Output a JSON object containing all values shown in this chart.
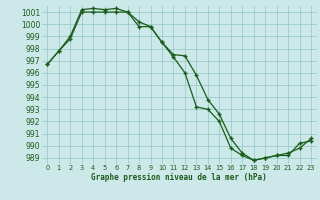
{
  "title": "Graphe pression niveau de la mer (hPa)",
  "bg_color": "#cce8e8",
  "grid_color": "#99cccc",
  "line_color": "#1a5c1a",
  "xlim": [
    -0.5,
    23.5
  ],
  "ylim": [
    988.5,
    1001.5
  ],
  "xticks": [
    0,
    1,
    2,
    3,
    4,
    5,
    6,
    7,
    8,
    9,
    10,
    11,
    12,
    13,
    14,
    15,
    16,
    17,
    18,
    19,
    20,
    21,
    22,
    23
  ],
  "yticks": [
    989,
    990,
    991,
    992,
    993,
    994,
    995,
    996,
    997,
    998,
    999,
    1000,
    1001
  ],
  "series1_x": [
    0,
    1,
    2,
    3,
    4,
    5,
    6,
    7,
    8,
    9,
    10,
    11,
    12,
    13,
    14,
    15,
    16,
    17,
    18,
    19,
    20,
    21,
    22,
    23
  ],
  "series1_y": [
    996.7,
    997.8,
    998.8,
    1001.0,
    1001.0,
    1001.0,
    1001.0,
    1001.0,
    999.8,
    999.8,
    998.5,
    997.3,
    996.0,
    993.2,
    993.0,
    992.0,
    989.8,
    989.2,
    988.8,
    989.0,
    989.2,
    989.2,
    990.2,
    990.4
  ],
  "series2_x": [
    0,
    1,
    2,
    3,
    4,
    5,
    6,
    7,
    8,
    9,
    10,
    11,
    12,
    13,
    14,
    15,
    16,
    17,
    18,
    19,
    20,
    21,
    22,
    23
  ],
  "series2_y": [
    996.7,
    997.8,
    999.0,
    1001.2,
    1001.3,
    1001.2,
    1001.3,
    1001.0,
    1000.2,
    999.8,
    998.5,
    997.5,
    997.4,
    995.8,
    993.8,
    992.6,
    990.6,
    989.4,
    988.8,
    989.0,
    989.2,
    989.4,
    989.8,
    990.6
  ]
}
